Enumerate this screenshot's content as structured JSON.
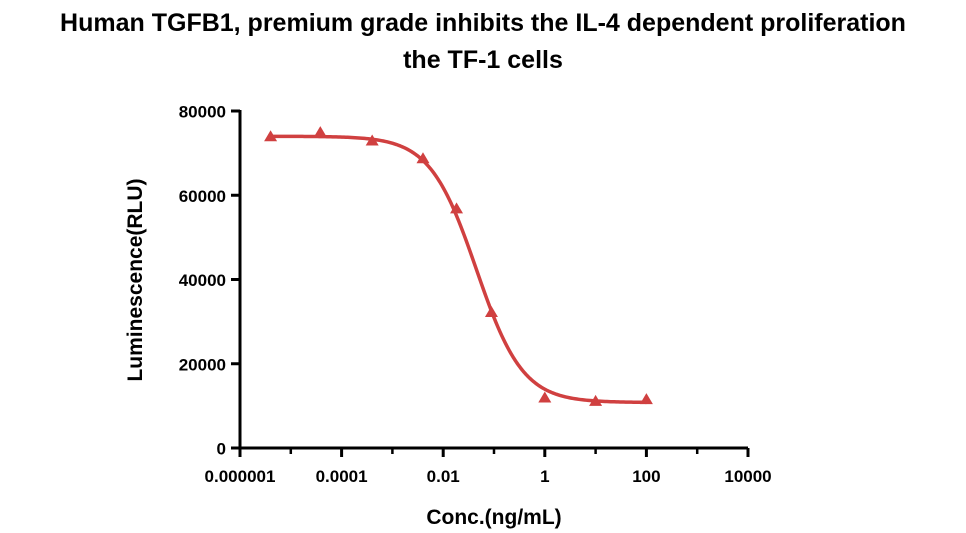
{
  "title_lines": [
    "Human TGFB1, premium grade inhibits the IL-4 dependent proliferation",
    "the TF-1 cells"
  ],
  "chart_data": {
    "type": "scatter",
    "title": "Human TGFB1, premium grade inhibits the IL-4 dependent proliferation the TF-1 cells",
    "xlabel": "Conc.(ng/mL)",
    "ylabel": "Luminescence(RLU)",
    "x_scale": "log10",
    "xlim": [
      1e-06,
      10000
    ],
    "ylim": [
      0,
      80000
    ],
    "x_ticks": [
      1e-06,
      0.0001,
      0.01,
      1,
      100,
      10000
    ],
    "x_tick_labels": [
      "0.000001",
      "0.0001",
      "0.01",
      "1",
      "100",
      "10000"
    ],
    "y_ticks": [
      0,
      20000,
      40000,
      60000,
      80000
    ],
    "y_tick_labels": [
      "0",
      "20000",
      "40000",
      "60000",
      "80000"
    ],
    "series": [
      {
        "marker": "triangle",
        "color": "#d04040",
        "x": [
          4e-06,
          3.81e-05,
          0.0004,
          0.004,
          0.0183,
          0.0891,
          1.0,
          10.0,
          100.0
        ],
        "y": [
          73800,
          74800,
          72800,
          68600,
          56700,
          32100,
          11800,
          11000,
          11400
        ]
      }
    ],
    "fit_curve": {
      "type": "4PL",
      "color": "#d04040",
      "top": 74000,
      "bottom": 10800,
      "ec50": 0.045,
      "hill": 0.95,
      "x_range": [
        4e-06,
        100
      ]
    },
    "grid": false,
    "legend": "none"
  }
}
